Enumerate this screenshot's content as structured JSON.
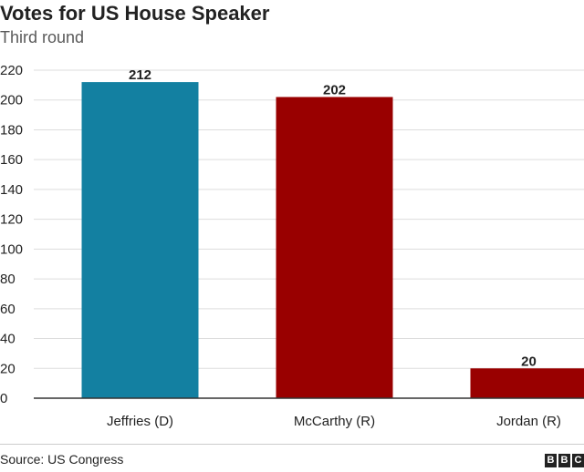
{
  "title": "Votes for US House Speaker",
  "subtitle": "Third round",
  "source": "Source: US Congress",
  "logo_letters": [
    "B",
    "B",
    "C"
  ],
  "colors": {
    "D": "#1380A1",
    "R": "#990000",
    "grid": "#dddddd",
    "axis": "#333333"
  },
  "chart_data": {
    "type": "bar",
    "categories": [
      "Jeffries (D)",
      "McCarthy (R)",
      "Jordan (R)"
    ],
    "values": [
      212,
      202,
      20
    ],
    "parties": [
      "D",
      "R",
      "R"
    ],
    "data_labels": [
      "212",
      "202",
      "20"
    ],
    "ylim": [
      0,
      220
    ],
    "yticks": [
      0,
      20,
      40,
      60,
      80,
      100,
      120,
      140,
      160,
      180,
      200,
      220
    ],
    "grid": true
  }
}
